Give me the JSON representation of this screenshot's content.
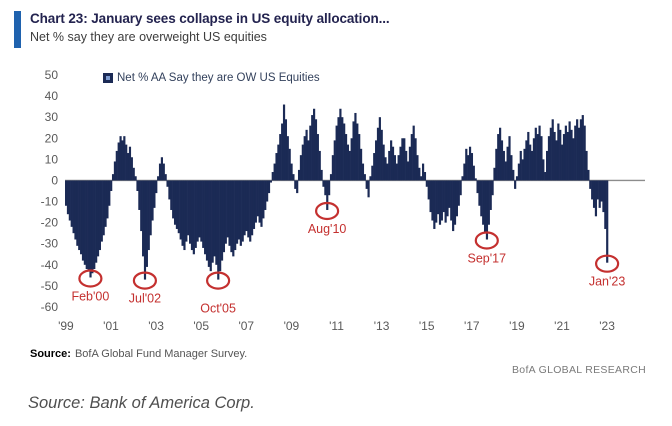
{
  "header": {
    "title": "Chart 23: January sees collapse in US equity allocation...",
    "subtitle": "Net % say they are overweight US equities",
    "accent_color": "#1f62ae"
  },
  "legend": {
    "label": "Net % AA Say they are OW US Equities",
    "marker": "navy-square"
  },
  "chart_data": {
    "type": "bar",
    "title": "Net % AA Say they are OW US Equities",
    "xlabel": "",
    "ylabel": "",
    "ylim": [
      -60,
      50
    ],
    "y_ticks": [
      50,
      40,
      30,
      20,
      10,
      0,
      -10,
      -20,
      -30,
      -40,
      -50,
      -60
    ],
    "x_tick_labels": [
      "'99",
      "'01",
      "'03",
      "'05",
      "'07",
      "'09",
      "'11",
      "'13",
      "'15",
      "'17",
      "'19",
      "'21",
      "'23"
    ],
    "x_start": "1999-01",
    "frequency": "monthly",
    "bar_color": "#1b2a55",
    "zero_line_color": "#8c8c8c",
    "tick_label_color": "#595959",
    "annotation_color": "#c4302f",
    "grid": false,
    "legend_position": "top",
    "values": [
      -12,
      -16,
      -19,
      -22,
      -25,
      -28,
      -31,
      -33,
      -35,
      -38,
      -40,
      -42,
      -43,
      -46,
      -44,
      -42,
      -39,
      -36,
      -33,
      -29,
      -26,
      -22,
      -18,
      -12,
      -5,
      3,
      9,
      14,
      18,
      21,
      19,
      21,
      17,
      13,
      16,
      11,
      6,
      2,
      -5,
      -14,
      -24,
      -36,
      -47,
      -41,
      -33,
      -26,
      -19,
      -13,
      -6,
      2,
      8,
      11,
      8,
      3,
      -3,
      -9,
      -14,
      -18,
      -21,
      -23,
      -25,
      -28,
      -31,
      -33,
      -29,
      -26,
      -30,
      -33,
      -35,
      -32,
      -29,
      -27,
      -29,
      -32,
      -35,
      -38,
      -41,
      -43,
      -39,
      -36,
      -40,
      -47,
      -43,
      -38,
      -34,
      -30,
      -27,
      -31,
      -34,
      -36,
      -33,
      -30,
      -28,
      -31,
      -29,
      -26,
      -24,
      -27,
      -29,
      -26,
      -23,
      -20,
      -17,
      -20,
      -22,
      -18,
      -14,
      -10,
      -6,
      -1,
      4,
      8,
      13,
      17,
      22,
      27,
      36,
      29,
      21,
      15,
      8,
      3,
      -4,
      -6,
      5,
      12,
      17,
      21,
      24,
      19,
      26,
      31,
      34,
      29,
      22,
      14,
      5,
      -3,
      -7,
      -14,
      -7,
      3,
      12,
      19,
      26,
      30,
      34,
      30,
      27,
      22,
      17,
      14,
      20,
      28,
      32,
      27,
      22,
      15,
      8,
      3,
      -4,
      -8,
      2,
      7,
      13,
      19,
      25,
      30,
      24,
      17,
      11,
      8,
      14,
      19,
      16,
      12,
      8,
      12,
      16,
      20,
      20,
      14,
      9,
      16,
      22,
      26,
      20,
      12,
      6,
      2,
      8,
      4,
      -3,
      -9,
      -15,
      -19,
      -23,
      -20,
      -16,
      -21,
      -19,
      -15,
      -20,
      -17,
      -13,
      -19,
      -24,
      -21,
      -17,
      -12,
      -7,
      2,
      8,
      15,
      12,
      16,
      13,
      7,
      1,
      -6,
      -12,
      -17,
      -21,
      -25,
      -28,
      -21,
      -14,
      -7,
      6,
      15,
      22,
      25,
      19,
      14,
      9,
      16,
      21,
      12,
      5,
      -4,
      2,
      8,
      14,
      10,
      15,
      19,
      23,
      17,
      14,
      20,
      25,
      22,
      26,
      21,
      10,
      4,
      14,
      21,
      25,
      29,
      23,
      19,
      27,
      24,
      17,
      22,
      26,
      23,
      28,
      24,
      20,
      26,
      29,
      25,
      29,
      31,
      26,
      14,
      5,
      -4,
      -9,
      -13,
      -17,
      -9,
      -13,
      -10,
      -15,
      -23,
      -39
    ],
    "annotations": [
      {
        "label": "Feb'00",
        "index": 13,
        "value": -46,
        "label_dy": 0
      },
      {
        "label": "Jul'02",
        "index": 42,
        "value": -47,
        "label_dy": 0
      },
      {
        "label": "Oct'05",
        "index": 81,
        "value": -47,
        "label_dy": 10
      },
      {
        "label": "Aug'10",
        "index": 139,
        "value": -14,
        "label_dy": 0
      },
      {
        "label": "Sep'17",
        "index": 224,
        "value": -28,
        "label_dy": 0
      },
      {
        "label": "Jan'23",
        "index": 288,
        "value": -39,
        "label_dy": 0
      }
    ]
  },
  "footer": {
    "source_label": "Source:",
    "source_text": "BofA Global Fund Manager Survey.",
    "brand": "BofA GLOBAL RESEARCH"
  },
  "caption": "Source: Bank of America Corp."
}
